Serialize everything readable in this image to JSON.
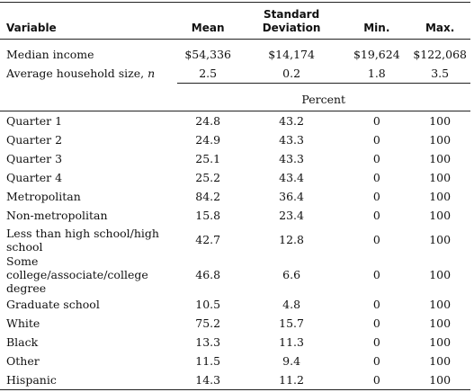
{
  "header": {
    "variable": "Variable",
    "mean": "Mean",
    "sd_line1": "Standard",
    "sd_line2": "Deviation",
    "min": "Min.",
    "max": "Max."
  },
  "top_rows": [
    {
      "variable": "Median income",
      "mean": "$54,336",
      "sd": "$14,174",
      "min": "$19,624",
      "max": "$122,068"
    },
    {
      "variable": "Average household size, ",
      "variable_italic": "n",
      "mean": "2.5",
      "sd": "0.2",
      "min": "1.8",
      "max": "3.5"
    }
  ],
  "percent_label": "Percent",
  "rows": [
    {
      "variable": "Quarter 1",
      "mean": "24.8",
      "sd": "43.2",
      "min": "0",
      "max": "100"
    },
    {
      "variable": "Quarter 2",
      "mean": "24.9",
      "sd": "43.3",
      "min": "0",
      "max": "100"
    },
    {
      "variable": "Quarter 3",
      "mean": "25.1",
      "sd": "43.3",
      "min": "0",
      "max": "100"
    },
    {
      "variable": "Quarter 4",
      "mean": "25.2",
      "sd": "43.4",
      "min": "0",
      "max": "100"
    },
    {
      "variable": "Metropolitan",
      "mean": "84.2",
      "sd": "36.4",
      "min": "0",
      "max": "100"
    },
    {
      "variable": "Non-metropolitan",
      "mean": "15.8",
      "sd": "23.4",
      "min": "0",
      "max": "100"
    },
    {
      "variable": "Less than high school/high school",
      "line1": "Less than high school/high",
      "line2": "school",
      "mean": "42.7",
      "sd": "12.8",
      "min": "0",
      "max": "100"
    },
    {
      "variable": "Some college/associate/college degree",
      "line1": "Some college/associate/college",
      "line2": "degree",
      "mean": "46.8",
      "sd": "6.6",
      "min": "0",
      "max": "100"
    },
    {
      "variable": "Graduate school",
      "mean": "10.5",
      "sd": "4.8",
      "min": "0",
      "max": "100"
    },
    {
      "variable": "White",
      "mean": "75.2",
      "sd": "15.7",
      "min": "0",
      "max": "100"
    },
    {
      "variable": "Black",
      "mean": "13.3",
      "sd": "11.3",
      "min": "0",
      "max": "100"
    },
    {
      "variable": "Other",
      "mean": "11.5",
      "sd": "9.4",
      "min": "0",
      "max": "100"
    },
    {
      "variable": "Hispanic",
      "mean": "14.3",
      "sd": "11.2",
      "min": "0",
      "max": "100"
    }
  ]
}
